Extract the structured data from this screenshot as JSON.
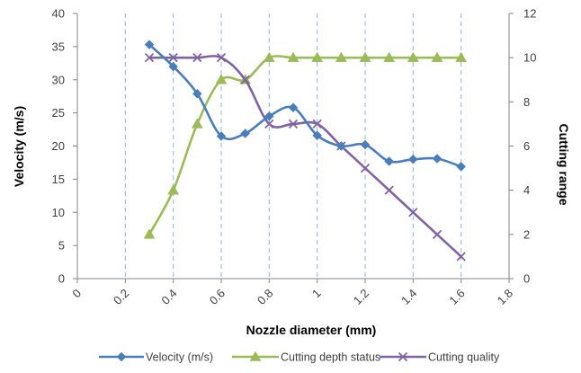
{
  "chart_data": {
    "type": "line",
    "title": "",
    "xlabel": "Nozzle diameter (mm)",
    "ylabel": "Velocity (m/s)",
    "y2label": "Cutting range",
    "xlim": [
      0,
      1.8
    ],
    "ylim": [
      0,
      40
    ],
    "y2lim": [
      0,
      12
    ],
    "x_ticks": [
      "0",
      "0.2",
      "0.4",
      "0.6",
      "0.8",
      "1",
      "1.2",
      "1.4",
      "1.6",
      "1.8"
    ],
    "y_ticks": [
      "0",
      "5",
      "10",
      "15",
      "20",
      "25",
      "30",
      "35",
      "40"
    ],
    "y2_ticks": [
      "0",
      "2",
      "4",
      "6",
      "8",
      "10",
      "12"
    ],
    "grid": "vertical dashed",
    "legend_position": "bottom",
    "series": [
      {
        "name": "Velocity (m/s)",
        "axis": "left",
        "color": "#4a7ebb",
        "marker": "diamond",
        "x": [
          0.3,
          0.4,
          0.5,
          0.6,
          0.7,
          0.8,
          0.9,
          1.0,
          1.1,
          1.2,
          1.3,
          1.4,
          1.5,
          1.6
        ],
        "values": [
          35.3,
          32.0,
          27.9,
          21.5,
          21.9,
          24.5,
          25.8,
          21.6,
          20.0,
          20.2,
          17.7,
          18.0,
          18.1,
          16.9
        ]
      },
      {
        "name": "Cutting depth status",
        "axis": "right",
        "color": "#9bbb59",
        "marker": "triangle",
        "x": [
          0.3,
          0.4,
          0.5,
          0.6,
          0.7,
          0.8,
          0.9,
          1.0,
          1.1,
          1.2,
          1.3,
          1.4,
          1.5,
          1.6
        ],
        "values": [
          2,
          4,
          7,
          9,
          9,
          10,
          10,
          10,
          10,
          10,
          10,
          10,
          10,
          10
        ]
      },
      {
        "name": "Cutting quality",
        "axis": "right",
        "color": "#8064a2",
        "marker": "x",
        "x": [
          0.3,
          0.4,
          0.5,
          0.6,
          0.7,
          0.8,
          0.9,
          1.0,
          1.1,
          1.2,
          1.3,
          1.4,
          1.5,
          1.6
        ],
        "values": [
          10,
          10,
          10,
          10,
          9,
          7,
          7,
          7,
          6,
          5,
          4,
          3,
          2,
          1
        ]
      }
    ]
  }
}
